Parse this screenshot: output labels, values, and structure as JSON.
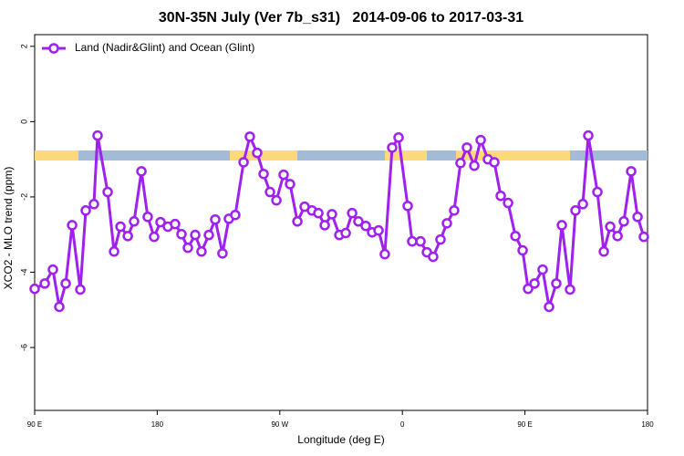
{
  "chart_data": {
    "type": "line",
    "title": "30N-35N July (Ver 7b_s31)   2014-09-06 to 2017-03-31",
    "x_label": "Longitude (deg E)",
    "y_label": "XCO2 - MLO trend (ppm)",
    "xlim": [
      90,
      540
    ],
    "ylim": [
      -7.67,
      2.31
    ],
    "xticks": [
      {
        "value": 90,
        "label": "90 E"
      },
      180,
      {
        "value": 270,
        "label": "90 W"
      },
      {
        "value": 360,
        "label": "0"
      },
      {
        "value": 450,
        "label": "90 E"
      },
      {
        "value": 540,
        "label": "180"
      }
    ],
    "yticks": [
      2,
      0,
      -2,
      -4,
      -6
    ],
    "legend": "top-left",
    "series": [
      {
        "name": "Land (Nadir&Glint) and Ocean (Glint)",
        "color": "#a020f0",
        "x": [
          90,
          97.4,
          103.4,
          108.1,
          112.8,
          117.5,
          123.5,
          127.5,
          133.5,
          136.2,
          143.6,
          148.3,
          153,
          158.4,
          163,
          168.4,
          173,
          177.7,
          182.4,
          187.8,
          193.1,
          197.8,
          202.5,
          207.9,
          212.5,
          217.9,
          222.6,
          227.9,
          232.6,
          237.3,
          243.4,
          248,
          253.4,
          258.1,
          262.8,
          267.5,
          272.8,
          277.5,
          282.9,
          288.2,
          293.6,
          298.3,
          303,
          308.3,
          313.7,
          318.4,
          323.1,
          327.7,
          333.1,
          337.8,
          342.5,
          347.1,
          352.5,
          357.2,
          363.9,
          367.2,
          373.3,
          378,
          382.6,
          388,
          392.7,
          398,
          402.7,
          407.4,
          412.8,
          417.5,
          422.8,
          427.5,
          432.2,
          437.6,
          443,
          448.3,
          452.3,
          457,
          463,
          467.7,
          473,
          477.1,
          483.1,
          487.1,
          492.5,
          496.5,
          503.2,
          507.9,
          512.6,
          518,
          522.6,
          528,
          532.7,
          537.3
        ],
        "values": [
          -4.44,
          -4.3,
          -3.93,
          -4.92,
          -4.3,
          -2.75,
          -4.46,
          -2.36,
          -2.19,
          -0.37,
          -1.87,
          -3.45,
          -2.79,
          -3.04,
          -2.65,
          -1.32,
          -2.53,
          -3.06,
          -2.67,
          -2.79,
          -2.72,
          -2.99,
          -3.35,
          -3.01,
          -3.45,
          -3.01,
          -2.6,
          -3.5,
          -2.58,
          -2.48,
          -1.08,
          -0.4,
          -0.83,
          -1.39,
          -1.87,
          -2.09,
          -1.41,
          -1.66,
          -2.65,
          -2.26,
          -2.36,
          -2.43,
          -2.75,
          -2.46,
          -3.01,
          -2.96,
          -2.43,
          -2.65,
          -2.77,
          -2.94,
          -2.89,
          -3.52,
          -0.69,
          -0.42,
          -2.24,
          -3.18,
          -3.18,
          -3.47,
          -3.59,
          -3.13,
          -2.7,
          -2.36,
          -1.1,
          -0.69,
          -1.17,
          -0.49,
          -1.0,
          -1.08,
          -1.97,
          -2.16,
          -3.04,
          -3.42,
          -4.44,
          -4.3,
          -3.93,
          -4.92,
          -4.3,
          -2.75,
          -4.46,
          -2.36,
          -2.19,
          -0.37,
          -1.87,
          -3.45,
          -2.79,
          -3.04,
          -2.65,
          -1.32,
          -2.53,
          -3.06
        ]
      }
    ]
  }
}
